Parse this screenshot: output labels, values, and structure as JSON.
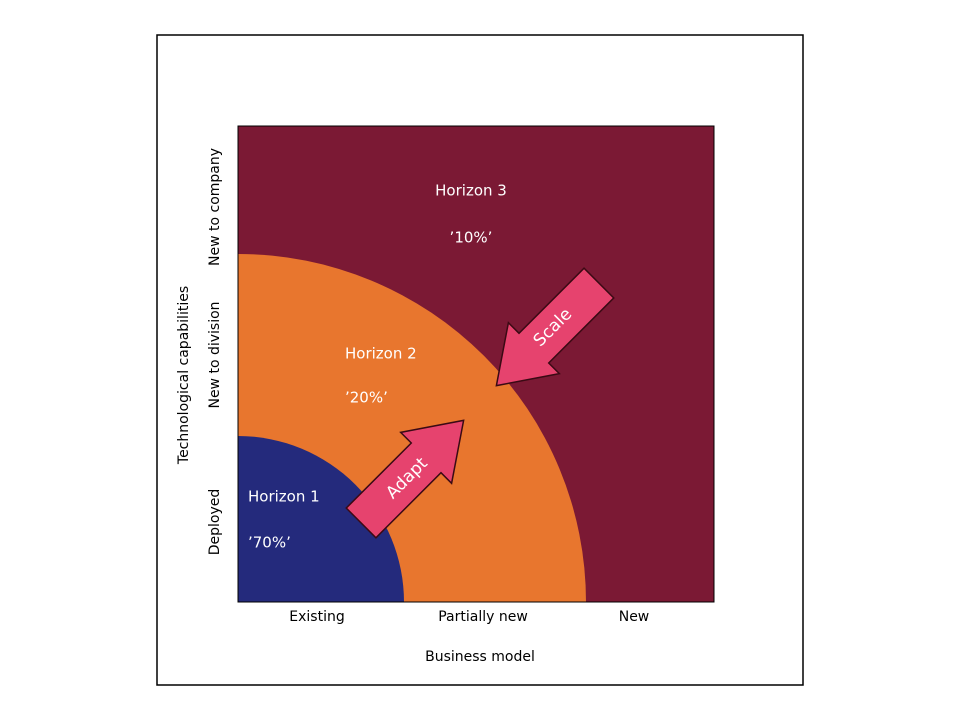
{
  "horizons": [
    {
      "label": "Horizon 1",
      "share": "’70%’"
    },
    {
      "label": "Horizon 2",
      "share": "’20%’"
    },
    {
      "label": "Horizon 3",
      "share": "’10%’"
    }
  ],
  "arrows": [
    "Adapt",
    "Scale"
  ],
  "x_axis": {
    "title": "Business model",
    "labels": [
      "Existing",
      "Partially new",
      "New"
    ]
  },
  "y_axis": {
    "title": "Technological capabilities",
    "labels": [
      "Deployed",
      "New to division",
      "New to company"
    ]
  }
}
